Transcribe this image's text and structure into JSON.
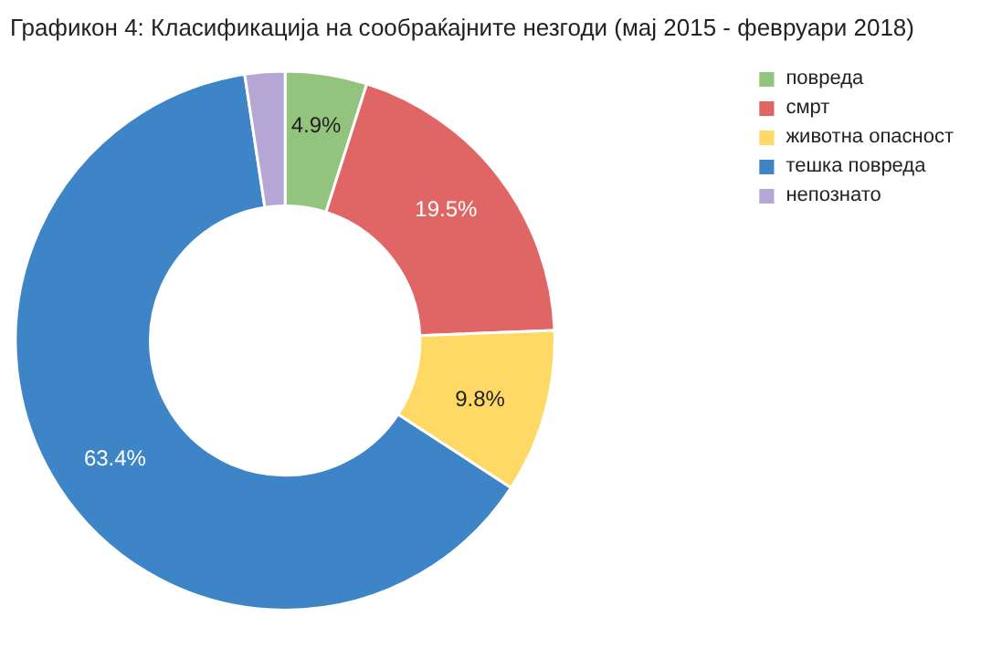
{
  "chart_data": {
    "type": "donut",
    "title": "Графикон 4: Класификација на сообраќајните незгоди (мај 2015 - февруари 2018)",
    "categories": [
      "повреда",
      "смрт",
      "животна опасност",
      "тешка повреда",
      "непознато"
    ],
    "values": [
      4.9,
      19.5,
      9.8,
      63.4,
      2.4
    ],
    "colors": [
      "#93c47d",
      "#e06666",
      "#ffd966",
      "#3d85c6",
      "#b4a7d6"
    ],
    "value_labels": [
      "4.9%",
      "19.5%",
      "9.8%",
      "63.4%",
      null
    ],
    "legend": "top right"
  }
}
